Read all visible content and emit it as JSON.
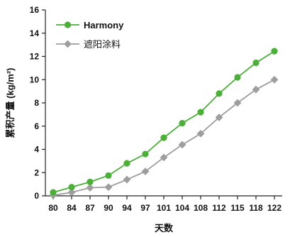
{
  "chart_data": {
    "type": "line",
    "x": [
      80,
      84,
      87,
      90,
      94,
      97,
      101,
      104,
      108,
      112,
      115,
      118,
      122
    ],
    "series": [
      {
        "name": "Harmony",
        "color": "#4caf3a",
        "marker": "circle",
        "values": [
          0.3,
          0.75,
          1.2,
          1.75,
          2.8,
          3.6,
          5.0,
          6.25,
          7.2,
          8.8,
          10.2,
          11.45,
          12.45
        ]
      },
      {
        "name": "遮阳涂料",
        "color": "#9e9e9e",
        "marker": "diamond",
        "values": [
          0.05,
          0.3,
          0.7,
          0.75,
          1.4,
          2.1,
          3.3,
          4.4,
          5.35,
          6.75,
          8.0,
          9.15,
          10.0
        ]
      }
    ],
    "xlabel": "天数",
    "ylabel": "累积产量 (kg/m²)",
    "ylim": [
      0,
      16
    ],
    "yticks": [
      0,
      2,
      4,
      6,
      8,
      10,
      12,
      14,
      16
    ],
    "xticks": [
      "80",
      "84",
      "87",
      "90",
      "94",
      "97",
      "101",
      "104",
      "108",
      "112",
      "115",
      "118",
      "122"
    ],
    "grid": false,
    "legend_position": "top-left"
  }
}
